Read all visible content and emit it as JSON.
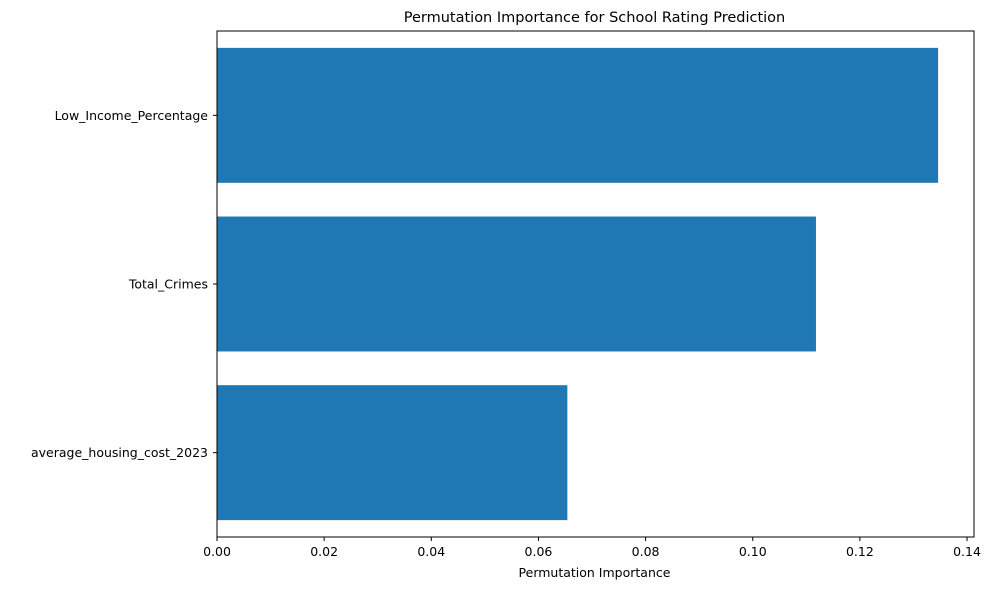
{
  "chart_data": {
    "type": "bar",
    "orientation": "horizontal",
    "title": "Permutation Importance for School Rating Prediction",
    "xlabel": "Permutation Importance",
    "ylabel": "",
    "categories": [
      "Low_Income_Percentage",
      "Total_Crimes",
      "average_housing_cost_2023"
    ],
    "values": [
      0.1346,
      0.1118,
      0.0654
    ],
    "xlim": [
      0,
      0.1413
    ],
    "xticks": [
      0.0,
      0.02,
      0.04,
      0.06,
      0.08,
      0.1,
      0.12,
      0.14
    ],
    "xtick_labels": [
      "0.00",
      "0.02",
      "0.04",
      "0.06",
      "0.08",
      "0.10",
      "0.12",
      "0.14"
    ],
    "bar_color": "#1f77b4",
    "grid": false,
    "legend": "none"
  }
}
